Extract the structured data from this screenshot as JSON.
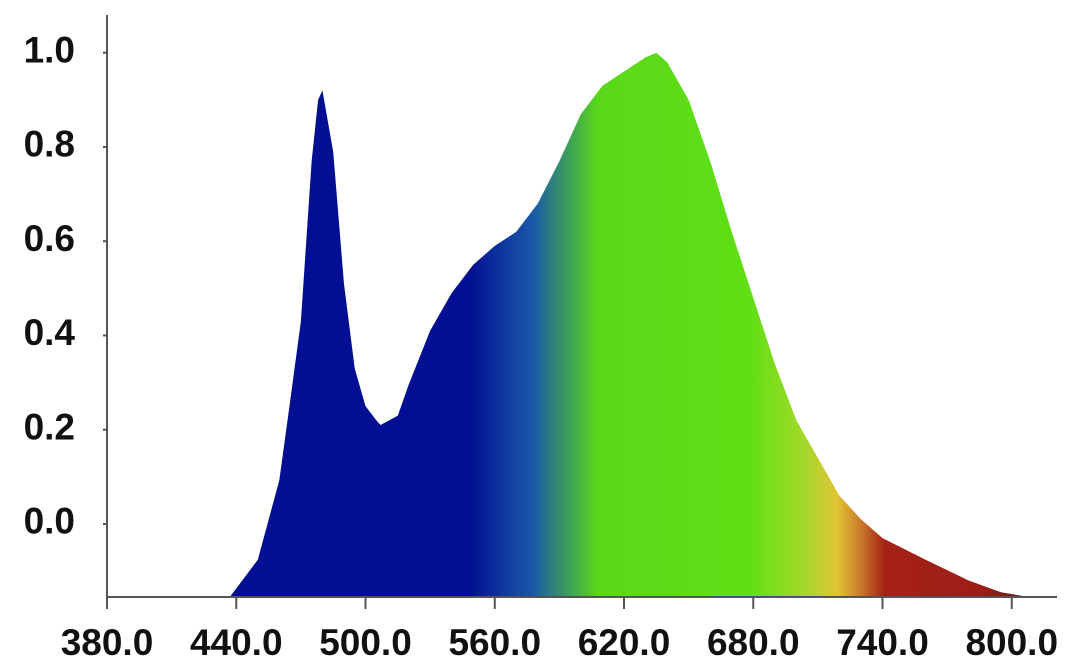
{
  "chart_data": {
    "type": "area",
    "x": [
      437,
      450,
      460,
      465,
      470,
      475,
      478,
      480,
      485,
      490,
      495,
      500,
      505,
      507,
      515,
      520,
      530,
      540,
      550,
      560,
      570,
      580,
      590,
      600,
      610,
      620,
      630,
      635,
      640,
      650,
      660,
      670,
      680,
      690,
      700,
      710,
      720,
      730,
      740,
      760,
      780,
      795,
      808
    ],
    "values": [
      -0.155,
      -0.076,
      0.093,
      0.26,
      0.43,
      0.77,
      0.9,
      0.92,
      0.79,
      0.51,
      0.33,
      0.25,
      0.22,
      0.21,
      0.23,
      0.295,
      0.41,
      0.49,
      0.55,
      0.59,
      0.62,
      0.68,
      0.77,
      0.87,
      0.93,
      0.96,
      0.99,
      1.0,
      0.98,
      0.9,
      0.77,
      0.62,
      0.48,
      0.34,
      0.22,
      0.14,
      0.06,
      0.01,
      -0.03,
      -0.076,
      -0.12,
      -0.145,
      -0.155
    ],
    "xlim": [
      380,
      821
    ],
    "ylim": [
      -0.155,
      1.08
    ],
    "xticks": [
      {
        "value": 380,
        "label": "380.0"
      },
      {
        "value": 440,
        "label": "440.0"
      },
      {
        "value": 500,
        "label": "500.0"
      },
      {
        "value": 560,
        "label": "560.0"
      },
      {
        "value": 620,
        "label": "620.0"
      },
      {
        "value": 680,
        "label": "680.0"
      },
      {
        "value": 740,
        "label": "740.0"
      },
      {
        "value": 800,
        "label": "800.0"
      }
    ],
    "yticks": [
      {
        "value": 0,
        "label": "0.0"
      },
      0.2,
      0.4,
      0.6,
      0.8,
      {
        "value": 1,
        "label": "1.0"
      }
    ]
  }
}
